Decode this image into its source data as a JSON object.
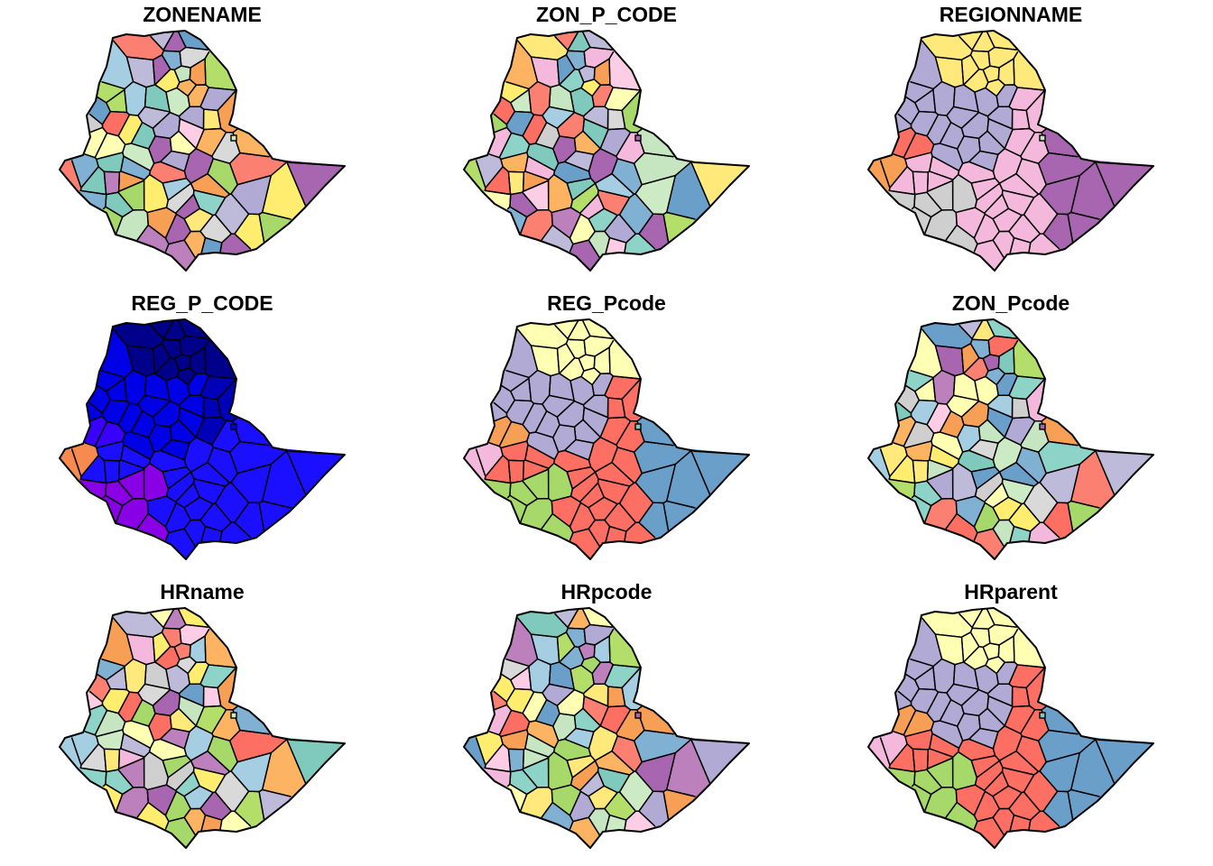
{
  "figure": {
    "panels": [
      {
        "id": "zonename",
        "title": "ZONENAME",
        "palette": "set3_a"
      },
      {
        "id": "zon-p-code",
        "title": "ZON_P_CODE",
        "palette": "set3_b"
      },
      {
        "id": "regionname",
        "title": "REGIONNAME",
        "palette": "regions_a"
      },
      {
        "id": "reg-p-code",
        "title": "REG_P_CODE",
        "palette": "blues"
      },
      {
        "id": "reg-pcode",
        "title": "REG_Pcode",
        "palette": "regions_b"
      },
      {
        "id": "zon-pcode",
        "title": "ZON_Pcode",
        "palette": "set3_b"
      },
      {
        "id": "hrname",
        "title": "HRname",
        "palette": "set3_a"
      },
      {
        "id": "hrpcode",
        "title": "HRpcode",
        "palette": "set3_b"
      },
      {
        "id": "hrparent",
        "title": "HRparent",
        "palette": "regions_b"
      }
    ]
  },
  "palettes": {
    "set3_a": [
      "#8dd3c7",
      "#ffffb3",
      "#bebada",
      "#fb8072",
      "#80b1d3",
      "#fdb462",
      "#b3de69",
      "#fccde5",
      "#d9d9d9",
      "#bc80bd",
      "#ccebc5",
      "#ffed6f",
      "#a6cee3",
      "#6a9fca",
      "#fc6f62",
      "#a6d96a",
      "#f79f55",
      "#f4b8dc",
      "#cfcfcf",
      "#a865b0",
      "#c5e6c0",
      "#fee97a",
      "#7fcabc",
      "#b0aad4"
    ],
    "set3_b": [
      "#a6d96a",
      "#7fcabc",
      "#6a9fca",
      "#fee97a",
      "#f79f55",
      "#c5e6c0",
      "#b0aad4",
      "#fc6f62",
      "#f4b8dc",
      "#cfcfcf",
      "#a865b0",
      "#ffffb3",
      "#8dd3c7",
      "#bebada",
      "#fb8072",
      "#80b1d3",
      "#fdb462",
      "#b3de69",
      "#fccde5",
      "#d9d9d9",
      "#bc80bd",
      "#ccebc5",
      "#ffed6f",
      "#a6cee3"
    ],
    "regions_a": [
      "#fee97a",
      "#b0aad4",
      "#c5e6c0",
      "#fc6f62",
      "#f4b8dc",
      "#a865b0",
      "#cfcfcf",
      "#f79f55",
      "#f4b8dc",
      "#a865b0"
    ],
    "regions_b": [
      "#ffffb3",
      "#b0aad4",
      "#7fcabc",
      "#f79f55",
      "#fc6f62",
      "#6a9fca",
      "#a6d96a",
      "#f4b8dc",
      "#fc6f62",
      "#6a9fca"
    ],
    "blues": [
      "#00008b",
      "#0000b8",
      "#0000e6",
      "#1a10ff",
      "#3a00ff",
      "#5c00f0",
      "#8a00e6",
      "#f78a4f",
      "#1500ff",
      "#2f00ff"
    ]
  }
}
